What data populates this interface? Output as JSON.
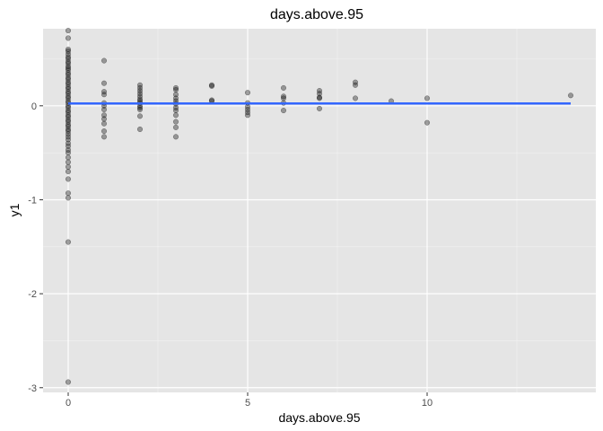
{
  "chart_data": {
    "type": "scatter",
    "title": "days.above.95",
    "xlabel": "days.above.95",
    "ylabel": "y1",
    "xlim": [
      -0.7,
      14.7
    ],
    "ylim": [
      -3.05,
      0.82
    ],
    "x_ticks": [
      0,
      5,
      10
    ],
    "y_ticks": [
      -3,
      -2,
      -1,
      0
    ],
    "x_tick_labels": [
      "0",
      "5",
      "10"
    ],
    "y_tick_labels": [
      "-3",
      "-2",
      "-1",
      "0"
    ],
    "grid": true,
    "legend": "none",
    "panel_color": "#e5e5e5",
    "point_color": "#000000",
    "point_alpha": 0.35,
    "series": [
      {
        "points": [
          [
            0,
            0.8
          ],
          [
            0,
            0.72
          ],
          [
            0,
            0.6
          ],
          [
            0,
            0.58
          ],
          [
            0,
            0.55
          ],
          [
            0,
            0.52
          ],
          [
            0,
            0.5
          ],
          [
            0,
            0.47
          ],
          [
            0,
            0.45
          ],
          [
            0,
            0.42
          ],
          [
            0,
            0.4
          ],
          [
            0,
            0.38
          ],
          [
            0,
            0.35
          ],
          [
            0,
            0.33
          ],
          [
            0,
            0.3
          ],
          [
            0,
            0.28
          ],
          [
            0,
            0.25
          ],
          [
            0,
            0.23
          ],
          [
            0,
            0.2
          ],
          [
            0,
            0.18
          ],
          [
            0,
            0.15
          ],
          [
            0,
            0.13
          ],
          [
            0,
            0.1
          ],
          [
            0,
            0.08
          ],
          [
            0,
            0.05
          ],
          [
            0,
            0.03
          ],
          [
            0,
            0.0
          ],
          [
            0,
            -0.02
          ],
          [
            0,
            -0.05
          ],
          [
            0,
            -0.07
          ],
          [
            0,
            -0.1
          ],
          [
            0,
            -0.12
          ],
          [
            0,
            -0.15
          ],
          [
            0,
            -0.17
          ],
          [
            0,
            -0.2
          ],
          [
            0,
            -0.22
          ],
          [
            0,
            -0.25
          ],
          [
            0,
            -0.27
          ],
          [
            0,
            -0.3
          ],
          [
            0,
            -0.33
          ],
          [
            0,
            -0.36
          ],
          [
            0,
            -0.4
          ],
          [
            0,
            -0.43
          ],
          [
            0,
            -0.47
          ],
          [
            0,
            -0.5
          ],
          [
            0,
            -0.55
          ],
          [
            0,
            -0.6
          ],
          [
            0,
            -0.65
          ],
          [
            0,
            -0.7
          ],
          [
            0,
            -0.78
          ],
          [
            0,
            -0.93
          ],
          [
            0,
            -0.98
          ],
          [
            0,
            -1.45
          ],
          [
            0,
            -2.94
          ],
          [
            1,
            0.48
          ],
          [
            1,
            0.24
          ],
          [
            1,
            0.15
          ],
          [
            1,
            0.12
          ],
          [
            1,
            0.03
          ],
          [
            1,
            0.0
          ],
          [
            1,
            -0.04
          ],
          [
            1,
            -0.1
          ],
          [
            1,
            -0.14
          ],
          [
            1,
            -0.19
          ],
          [
            1,
            -0.27
          ],
          [
            1,
            -0.33
          ],
          [
            2,
            0.22
          ],
          [
            2,
            0.19
          ],
          [
            2,
            0.16
          ],
          [
            2,
            0.13
          ],
          [
            2,
            0.1
          ],
          [
            2,
            0.07
          ],
          [
            2,
            0.05
          ],
          [
            2,
            0.03
          ],
          [
            2,
            0.0
          ],
          [
            2,
            -0.02
          ],
          [
            2,
            -0.04
          ],
          [
            2,
            -0.11
          ],
          [
            2,
            -0.25
          ],
          [
            3,
            0.19
          ],
          [
            3,
            0.17
          ],
          [
            3,
            0.12
          ],
          [
            3,
            0.08
          ],
          [
            3,
            0.05
          ],
          [
            3,
            0.02
          ],
          [
            3,
            -0.02
          ],
          [
            3,
            -0.05
          ],
          [
            3,
            -0.1
          ],
          [
            3,
            -0.17
          ],
          [
            3,
            -0.23
          ],
          [
            3,
            -0.33
          ],
          [
            4,
            0.22
          ],
          [
            4,
            0.21
          ],
          [
            4,
            0.06
          ],
          [
            4,
            0.05
          ],
          [
            5,
            0.14
          ],
          [
            5,
            0.03
          ],
          [
            5,
            -0.01
          ],
          [
            5,
            -0.04
          ],
          [
            5,
            -0.07
          ],
          [
            5,
            -0.1
          ],
          [
            6,
            0.19
          ],
          [
            6,
            0.1
          ],
          [
            6,
            0.08
          ],
          [
            6,
            0.03
          ],
          [
            6,
            -0.05
          ],
          [
            7,
            0.16
          ],
          [
            7,
            0.13
          ],
          [
            7,
            0.09
          ],
          [
            7,
            0.08
          ],
          [
            7,
            -0.03
          ],
          [
            8,
            0.25
          ],
          [
            8,
            0.22
          ],
          [
            8,
            0.08
          ],
          [
            9,
            0.05
          ],
          [
            10,
            0.08
          ],
          [
            10,
            -0.18
          ],
          [
            14,
            0.11
          ]
        ]
      }
    ],
    "fit_line": {
      "x": [
        0,
        14
      ],
      "y": [
        0.025,
        0.025
      ],
      "color": "#3366ff"
    }
  }
}
